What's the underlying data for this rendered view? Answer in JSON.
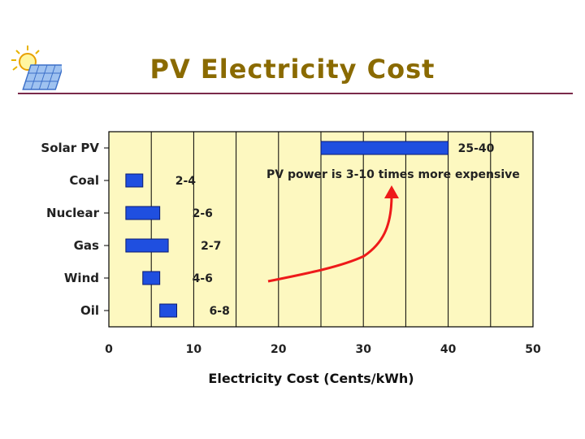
{
  "slide": {
    "title": "PV Electricity Cost"
  },
  "icons": {
    "logo": "sun-solar-panel-icon"
  },
  "colors": {
    "plot_bg": "#fdf8c0",
    "bar": "#1f4fe0",
    "bar_edge": "#0a1a70",
    "arrow": "#ee1a1a",
    "rule": "#7a2a4a"
  },
  "chart_data": {
    "type": "bar",
    "orientation": "horizontal",
    "categories": [
      "Solar PV",
      "Coal",
      "Nuclear",
      "Gas",
      "Wind",
      "Oil"
    ],
    "ranges": [
      [
        25,
        40
      ],
      [
        2,
        4
      ],
      [
        2,
        6
      ],
      [
        2,
        7
      ],
      [
        4,
        6
      ],
      [
        6,
        8
      ]
    ],
    "range_labels": [
      "25-40",
      "2-4",
      "2-6",
      "2-7",
      "4-6",
      "6-8"
    ],
    "xlabel": "Electricity Cost (Cents/kWh)",
    "xlim": [
      0,
      50
    ],
    "xticks": [
      0,
      10,
      20,
      30,
      40,
      50
    ],
    "grid": true,
    "annotation": "PV power is 3-10 times more expensive"
  }
}
